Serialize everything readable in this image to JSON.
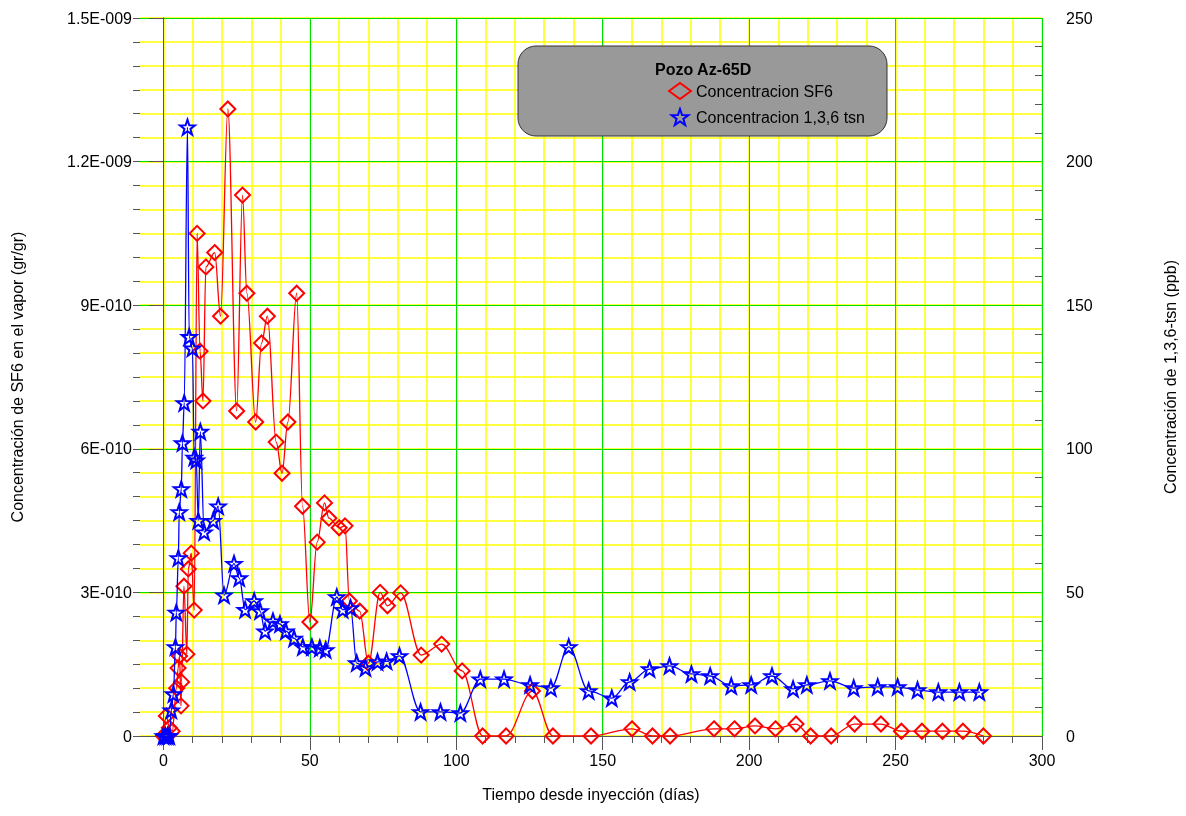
{
  "chart_data": {
    "type": "line",
    "xlabel": "Tiempo desde inyección (días)",
    "ylabel": "Concentración de SF6 en el vapor (gr/gr)",
    "y2label": "Concentración de 1,3,6-tsn (ppb)",
    "legend_title": "Pozo Az-65D",
    "legend": "top",
    "grid": true,
    "line_style": "solid",
    "xlim": [
      -8,
      300
    ],
    "xticks": [
      0,
      50,
      100,
      150,
      200,
      250,
      300
    ],
    "ylim": [
      0,
      1.5e-09
    ],
    "yticks": [
      {
        "value": 0,
        "label": "0"
      },
      {
        "value": 3e-10,
        "label": "3E-010"
      },
      {
        "value": 6e-10,
        "label": "6E-010"
      },
      {
        "value": 9e-10,
        "label": "9E-010"
      },
      {
        "value": 1.2e-09,
        "label": "1.2E-009"
      },
      {
        "value": 1.5e-09,
        "label": "1.5E-009"
      }
    ],
    "y2lim": [
      0,
      250
    ],
    "y2ticks": [
      0,
      50,
      100,
      150,
      200,
      250
    ],
    "series": [
      {
        "name": "Concentracion SF6",
        "color": "#ff0000",
        "marker": "diamond",
        "x": [
          0,
          1,
          2,
          3,
          4.5,
          5,
          5.5,
          6,
          6.2,
          7,
          8,
          8.5,
          9.5,
          10.5,
          11.5,
          12.5,
          13.5,
          14.5,
          17.5,
          19.5,
          22,
          25,
          27,
          28.5,
          31.5,
          33.5,
          35.5,
          38.5,
          40.5,
          42.5,
          45.5,
          47.5,
          50,
          52.5,
          55,
          56.5,
          60,
          62,
          63.5,
          67,
          70,
          74,
          76.5,
          81,
          88,
          95,
          102,
          109,
          117,
          126,
          133,
          146,
          160,
          167,
          173,
          188,
          195,
          202,
          209,
          216,
          221,
          228,
          236,
          245,
          252,
          259,
          266,
          273,
          280
        ],
        "values": [
          0,
          4.2e-11,
          1.7e-11,
          1e-11,
          1e-10,
          1.42e-10,
          1.67e-10,
          6.3e-11,
          1.13e-10,
          3.13e-10,
          1.71e-10,
          3.49e-10,
          3.82e-10,
          2.63e-10,
          1.05e-09,
          8.04e-10,
          7e-10,
          9.8e-10,
          1.01e-09,
          8.77e-10,
          1.31e-09,
          6.79e-10,
          1.13e-09,
          9.25e-10,
          6.56e-10,
          8.21e-10,
          8.77e-10,
          6.14e-10,
          5.49e-10,
          6.56e-10,
          9.25e-10,
          4.8e-10,
          2.38e-10,
          4.05e-10,
          4.87e-10,
          4.55e-10,
          4.35e-10,
          4.39e-10,
          2.82e-10,
          2.61e-10,
          1.52e-10,
          3e-10,
          2.72e-10,
          2.99e-10,
          1.69e-10,
          1.92e-10,
          1.36e-10,
          0,
          0,
          9.4e-11,
          0,
          0,
          1.5e-11,
          0,
          0,
          1.5e-11,
          1.5e-11,
          2.1e-11,
          1.5e-11,
          2.5e-11,
          0,
          0,
          2.5e-11,
          2.5e-11,
          1e-11,
          1e-11,
          1e-11,
          1e-11,
          0
        ]
      },
      {
        "name": "Concentracion 1,3,6 tsn",
        "color": "#0000ff",
        "marker": "star",
        "axis": "y2",
        "x": [
          0,
          0.7,
          1.4,
          2,
          2.7,
          3.4,
          4.1,
          4.4,
          5.1,
          5.4,
          6.1,
          6.5,
          7.1,
          8.2,
          8.8,
          9.9,
          10.5,
          11.2,
          11.9,
          12.6,
          13.9,
          17,
          18.7,
          20.7,
          24.1,
          25.9,
          27.9,
          31,
          33,
          34.7,
          37.4,
          39.8,
          41.8,
          44.6,
          47.6,
          50.7,
          53.4,
          55.4,
          59.2,
          61.2,
          63.9,
          66,
          69,
          73.1,
          76.2,
          80.6,
          87.8,
          94.6,
          101.4,
          108.2,
          116.3,
          125.2,
          132.3,
          138.4,
          145.2,
          153.1,
          159.2,
          166,
          172.8,
          180.3,
          186.7,
          193.9,
          200.7,
          207.8,
          215,
          219.7,
          227.6,
          235.7,
          243.9,
          250.7,
          257.5,
          264.6,
          271.8,
          278.6
        ],
        "values": [
          0,
          0,
          0,
          0,
          9,
          14.6,
          31,
          43,
          62,
          78,
          86,
          102,
          116,
          212,
          139,
          135,
          97,
          96,
          75,
          106,
          71,
          75,
          80,
          49,
          60,
          55,
          44,
          47,
          43.5,
          36.5,
          40,
          39,
          36.5,
          34,
          31,
          31,
          30.6,
          30,
          48.4,
          44,
          44.6,
          25.4,
          23.7,
          25.8,
          26,
          27.9,
          8.4,
          8.4,
          8,
          19.8,
          19.8,
          17.8,
          16.7,
          31,
          15.7,
          13.2,
          18.8,
          23.3,
          24.4,
          21.6,
          20.9,
          17.4,
          17.8,
          20.9,
          16.4,
          17.8,
          19.2,
          16.7,
          17.1,
          17.1,
          16,
          15.3,
          15.3,
          15.3
        ]
      }
    ]
  }
}
